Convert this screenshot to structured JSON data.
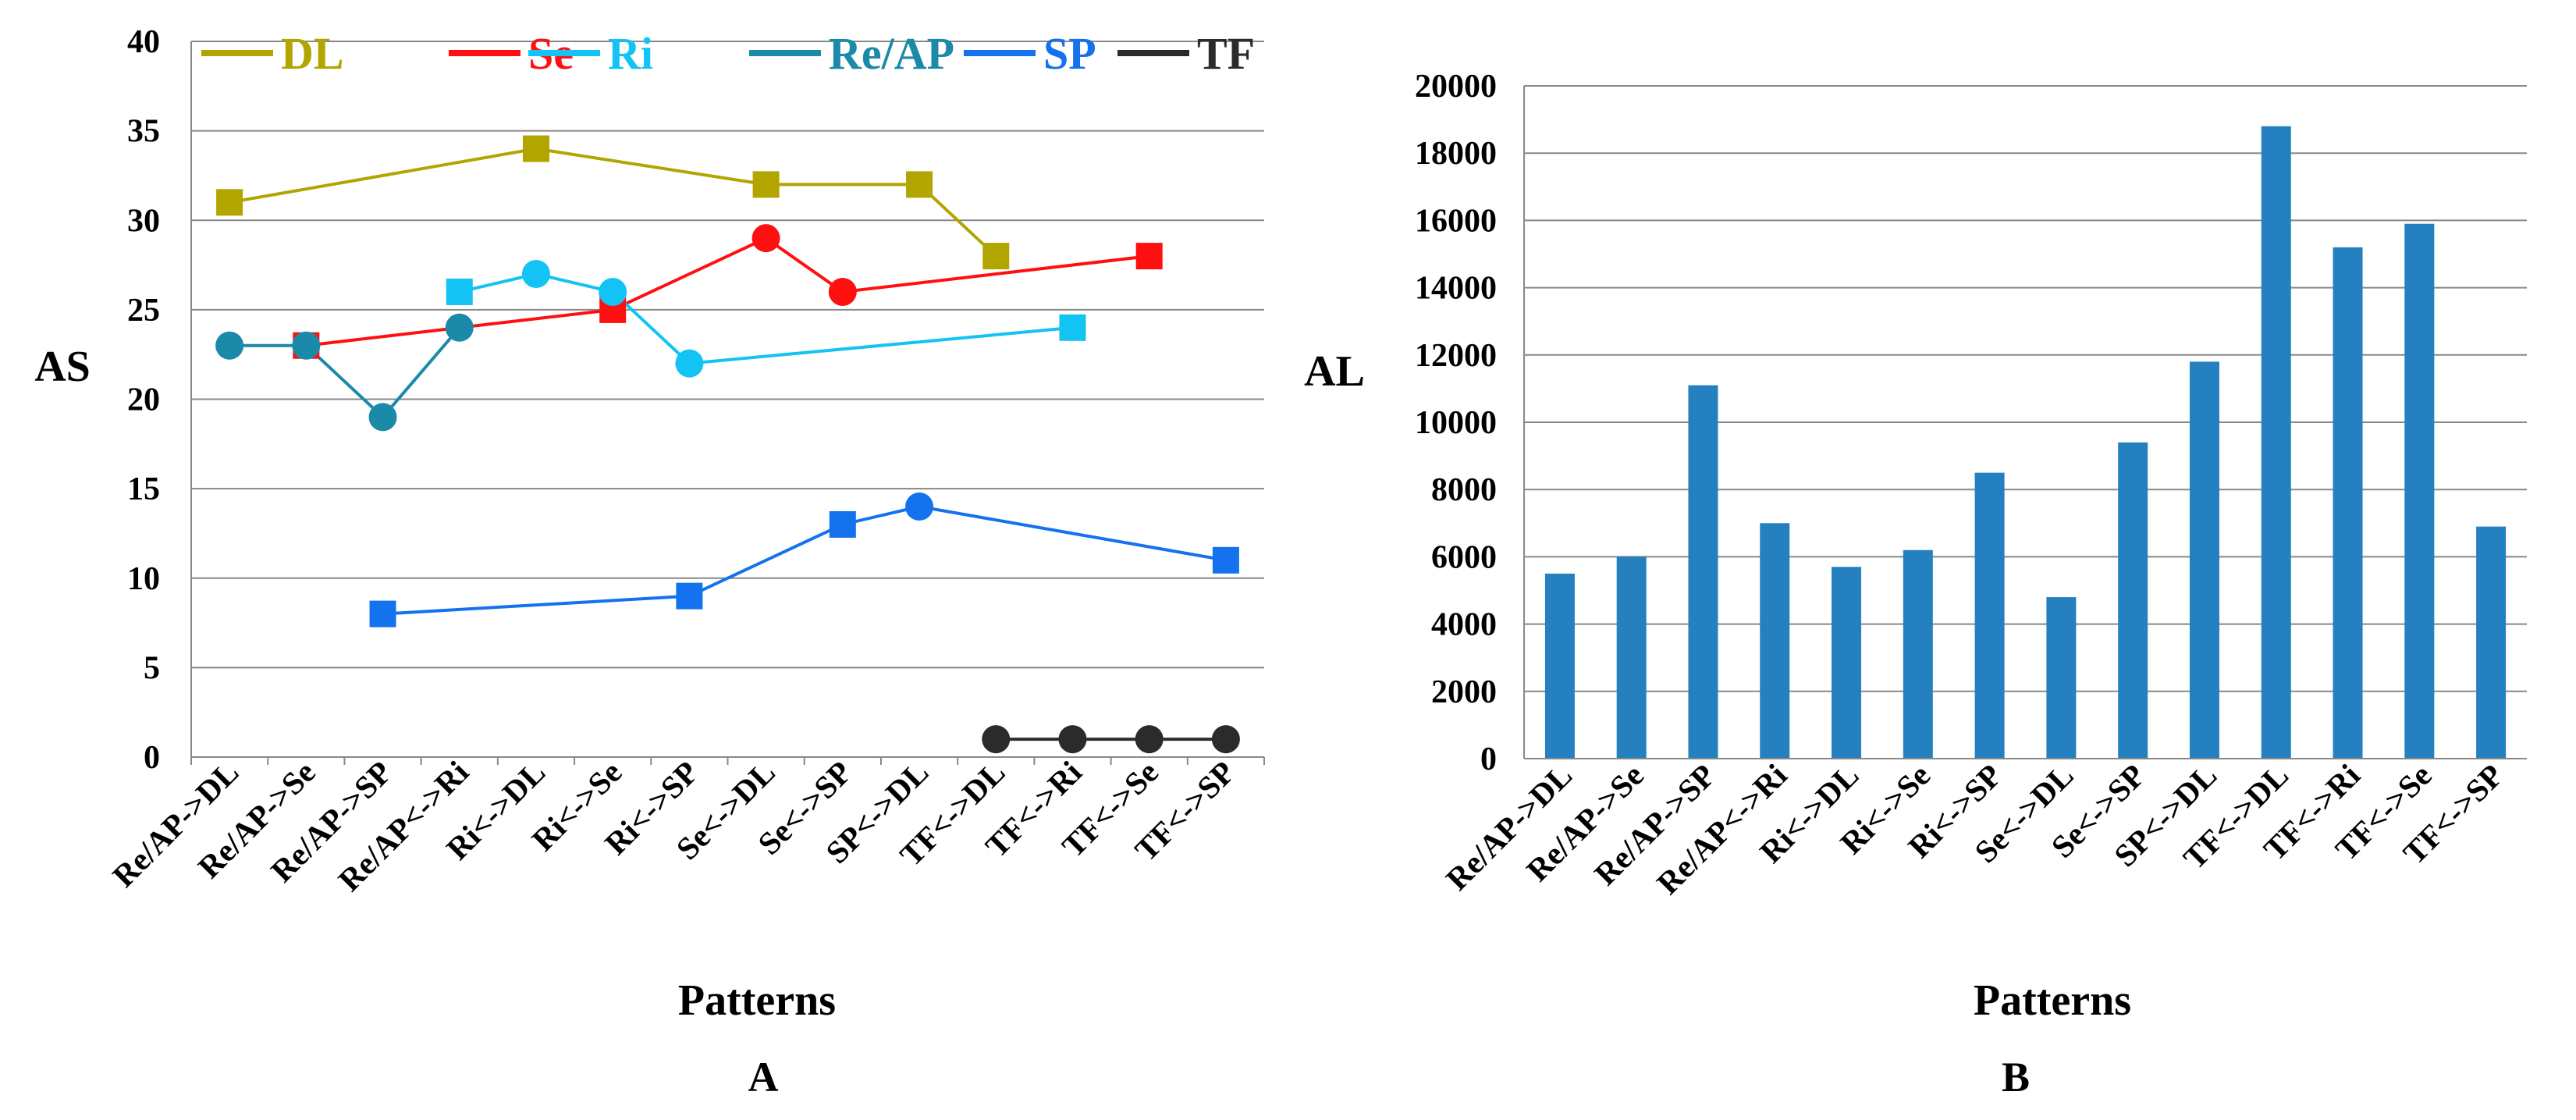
{
  "chart_data": [
    {
      "panel": "A",
      "type": "line",
      "xlabel": "Patterns",
      "ylabel": "AS",
      "ylim": [
        0,
        40
      ],
      "yticks": [
        "0",
        "5",
        "10",
        "15",
        "20",
        "25",
        "30",
        "35",
        "40"
      ],
      "grid": true,
      "legend_position": "top",
      "categories": [
        "Re/AP->DL",
        "Re/AP->Se",
        "Re/AP->SP",
        "Re/AP<->Ri",
        "Ri<->DL",
        "Ri<->Se",
        "Ri<->SP",
        "Se<->DL",
        "Se<->SP",
        "SP<->DL",
        "TF<->DL",
        "TF<->Ri",
        "TF<->Se",
        "TF<->SP"
      ],
      "series": [
        {
          "name": "DL",
          "color": "#b2a500",
          "points": [
            {
              "x": 0,
              "y": 31,
              "marker": "square"
            },
            {
              "x": 4,
              "y": 34,
              "marker": "square"
            },
            {
              "x": 7,
              "y": 32,
              "marker": "square"
            },
            {
              "x": 9,
              "y": 32,
              "marker": "square"
            },
            {
              "x": 10,
              "y": 28,
              "marker": "square"
            }
          ]
        },
        {
          "name": "Se",
          "color": "#ff1010",
          "points": [
            {
              "x": 1,
              "y": 23,
              "marker": "square"
            },
            {
              "x": 5,
              "y": 25,
              "marker": "square"
            },
            {
              "x": 7,
              "y": 29,
              "marker": "circle"
            },
            {
              "x": 8,
              "y": 26,
              "marker": "circle"
            },
            {
              "x": 12,
              "y": 28,
              "marker": "square"
            }
          ]
        },
        {
          "name": "Ri",
          "color": "#12c3f4",
          "points": [
            {
              "x": 3,
              "y": 26,
              "marker": "square"
            },
            {
              "x": 4,
              "y": 27,
              "marker": "circle"
            },
            {
              "x": 5,
              "y": 26,
              "marker": "circle"
            },
            {
              "x": 6,
              "y": 22,
              "marker": "circle"
            },
            {
              "x": 11,
              "y": 24,
              "marker": "square"
            }
          ]
        },
        {
          "name": "Re/AP",
          "color": "#1b8aa8",
          "points": [
            {
              "x": 0,
              "y": 23,
              "marker": "circle"
            },
            {
              "x": 1,
              "y": 23,
              "marker": "circle"
            },
            {
              "x": 2,
              "y": 19,
              "marker": "circle"
            },
            {
              "x": 3,
              "y": 24,
              "marker": "circle"
            }
          ]
        },
        {
          "name": "SP",
          "color": "#1472ee",
          "points": [
            {
              "x": 2,
              "y": 8,
              "marker": "square"
            },
            {
              "x": 6,
              "y": 9,
              "marker": "square"
            },
            {
              "x": 8,
              "y": 13,
              "marker": "square"
            },
            {
              "x": 9,
              "y": 14,
              "marker": "circle"
            },
            {
              "x": 13,
              "y": 11,
              "marker": "square"
            }
          ]
        },
        {
          "name": "TF",
          "color": "#2b2b2b",
          "points": [
            {
              "x": 10,
              "y": 1,
              "marker": "circle"
            },
            {
              "x": 11,
              "y": 1,
              "marker": "circle"
            },
            {
              "x": 12,
              "y": 1,
              "marker": "circle"
            },
            {
              "x": 13,
              "y": 1,
              "marker": "circle"
            }
          ]
        }
      ]
    },
    {
      "panel": "B",
      "type": "bar",
      "xlabel": "Patterns",
      "ylabel": "AL",
      "ylim": [
        0,
        20000
      ],
      "yticks": [
        "0",
        "2000",
        "4000",
        "6000",
        "8000",
        "10000",
        "12000",
        "14000",
        "16000",
        "18000",
        "20000"
      ],
      "grid": true,
      "color": "#2580bf",
      "categories": [
        "Re/AP->DL",
        "Re/AP->Se",
        "Re/AP->SP",
        "Re/AP<->Ri",
        "Ri<->DL",
        "Ri<->Se",
        "Ri<->SP",
        "Se<->DL",
        "Se<->SP",
        "SP<->DL",
        "TF<->DL",
        "TF<->Ri",
        "TF<->Se",
        "TF<->SP"
      ],
      "values": [
        5500,
        6000,
        11100,
        7000,
        5700,
        6200,
        8500,
        4800,
        9400,
        11800,
        18800,
        15200,
        15900,
        6900
      ]
    }
  ]
}
